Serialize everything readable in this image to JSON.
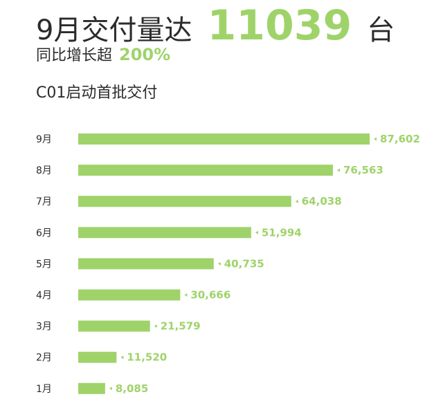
{
  "header": {
    "title_prefix": "9月交付量达",
    "highlight_value": "11039",
    "title_suffix": "台",
    "subtitle_label": "同比增长超",
    "subtitle_value": "200%",
    "caption": "C01启动首批交付"
  },
  "colors": {
    "accent": "#9fd36a",
    "text": "#2b2b2b"
  },
  "chart_data": {
    "type": "bar",
    "orientation": "horizontal",
    "title": "",
    "xlabel": "",
    "ylabel": "",
    "categories": [
      "9月",
      "8月",
      "7月",
      "6月",
      "5月",
      "4月",
      "3月",
      "2月",
      "1月"
    ],
    "values": [
      87602,
      76563,
      64038,
      51994,
      40735,
      30666,
      21579,
      11520,
      8085
    ],
    "value_labels": [
      "87,602",
      "76,563",
      "64,038",
      "51,994",
      "40,735",
      "30,666",
      "21,579",
      "11,520",
      "8,085"
    ],
    "xlim": [
      0,
      87602
    ],
    "grid": false,
    "legend": "none"
  }
}
